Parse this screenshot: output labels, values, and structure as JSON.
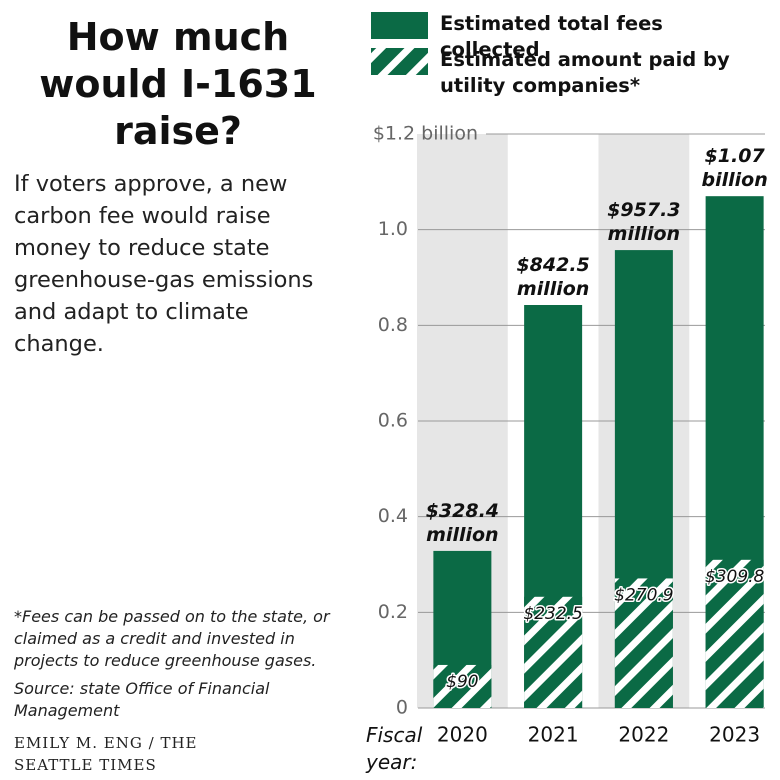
{
  "chart_data": {
    "type": "bar",
    "title": "How much would I-1631 raise?",
    "subtitle": "If voters approve, a new carbon fee would raise money to reduce state greenhouse-gas emissions and adapt to climate change.",
    "note": "*Fees can be passed on to the state, or claimed as a credit and invested in projects to reduce greenhouse gases.",
    "source": "Source: state Office of Financial Management",
    "credit": "EMILY M. ENG / THE SEATTLE TIMES",
    "x_label": "Fiscal year:",
    "categories": [
      "2020",
      "2021",
      "2022",
      "2023"
    ],
    "series": [
      {
        "name": "Estimated total fees collected",
        "color": "#0b6a45",
        "pattern": "solid",
        "values": [
          0.3284,
          0.8425,
          0.9573,
          1.07
        ],
        "value_labels": [
          "$328.4 million",
          "$842.5 million",
          "$957.3 million",
          "$1.07 billion"
        ]
      },
      {
        "name": "Estimated amount paid by utility companies*",
        "color": "#0b6a45",
        "pattern": "hatch",
        "values": [
          0.09,
          0.2325,
          0.2709,
          0.3098
        ],
        "value_labels": [
          "$90",
          "$232.5",
          "$270.9",
          "$309.8"
        ]
      }
    ],
    "overlap": true,
    "ylim": [
      0,
      1.2
    ],
    "yticks": [
      0,
      0.2,
      0.4,
      0.6,
      0.8,
      {
        "value": 1,
        "label": "1.0"
      },
      {
        "value": 1.2,
        "label": "$1.2 billion"
      }
    ],
    "grid": true,
    "legend": "top"
  }
}
